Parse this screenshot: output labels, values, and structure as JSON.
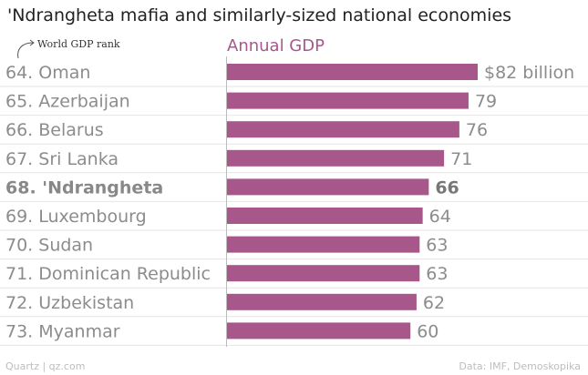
{
  "title": "'Ndrangheta mafia and similarly-sized national economies",
  "rank_note": "World GDP rank",
  "colors": {
    "bar": "#a7578a",
    "header": "#a7578a",
    "label": "#8c8c8c",
    "label_highlight": "#888888",
    "value": "#8c8c8c",
    "value_highlight": "#777777",
    "grid": "#e6e6e6",
    "axis": "#bbbbbb"
  },
  "footer": {
    "source_left": "Quartz | qz.com",
    "source_right": "Data: IMF, Demoskopika"
  },
  "chart_data": {
    "type": "bar",
    "orientation": "horizontal",
    "title": "'Ndrangheta mafia and similarly-sized national economies",
    "series_header": "Annual GDP",
    "categories": [
      "64. Oman",
      "65. Azerbaijan",
      "66. Belarus",
      "67. Sri Lanka",
      "68. 'Ndrangheta",
      "69. Luxembourg",
      "70. Sudan",
      "71. Dominican Republic",
      "72. Uzbekistan",
      "73. Myanmar"
    ],
    "values": [
      82,
      79,
      76,
      71,
      66,
      64,
      63,
      63,
      62,
      60
    ],
    "value_labels": [
      "$82 billion",
      "79",
      "76",
      "71",
      "66",
      "64",
      "63",
      "63",
      "62",
      "60"
    ],
    "highlight_index": 4,
    "xlim": [
      0,
      82
    ],
    "grid": true
  }
}
